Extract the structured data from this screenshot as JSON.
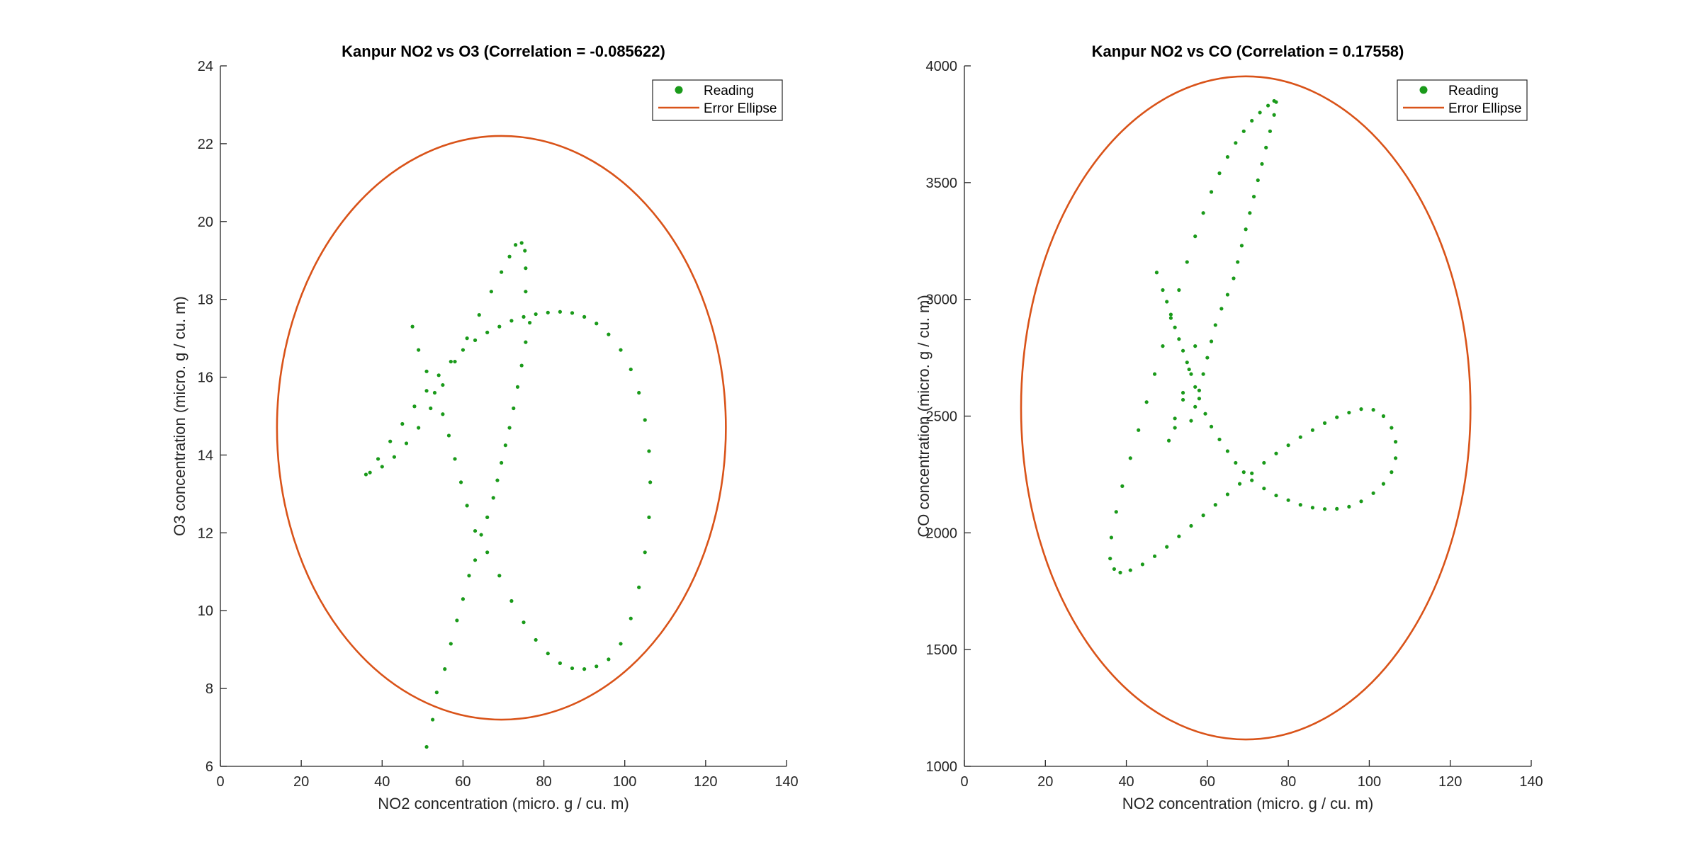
{
  "chart_data": [
    {
      "type": "scatter",
      "title": "Kanpur NO2 vs O3 (Correlation = -0.085622)",
      "xlabel": "NO2 concentration (micro. g / cu. m)",
      "ylabel": "O3 concentration (micro. g / cu. m)",
      "xlim": [
        0,
        140
      ],
      "ylim": [
        6,
        24
      ],
      "xticks": [
        "0",
        "20",
        "40",
        "60",
        "80",
        "100",
        "120",
        "140"
      ],
      "yticks": [
        "6",
        "8",
        "10",
        "12",
        "14",
        "16",
        "18",
        "20",
        "22",
        "24"
      ],
      "grid": false,
      "legend_position": "top-right",
      "series": [
        {
          "name": "Reading",
          "kind": "points",
          "color": "#1a9a1a",
          "points": [
            [
              51,
              6.5
            ],
            [
              52.5,
              7.2
            ],
            [
              53.5,
              7.9
            ],
            [
              55.5,
              8.5
            ],
            [
              57,
              9.15
            ],
            [
              58.5,
              9.75
            ],
            [
              60,
              10.3
            ],
            [
              61.5,
              10.9
            ],
            [
              63,
              11.3
            ],
            [
              64.5,
              11.95
            ],
            [
              66,
              12.4
            ],
            [
              67.5,
              12.9
            ],
            [
              68.5,
              13.35
            ],
            [
              69.5,
              13.8
            ],
            [
              70.5,
              14.25
            ],
            [
              71.5,
              14.7
            ],
            [
              72.5,
              15.2
            ],
            [
              73.5,
              15.75
            ],
            [
              74.5,
              16.3
            ],
            [
              75.5,
              16.9
            ],
            [
              76.5,
              17.4
            ],
            [
              75.5,
              18.2
            ],
            [
              75.5,
              18.8
            ],
            [
              75.3,
              19.25
            ],
            [
              74.5,
              19.45
            ],
            [
              73,
              19.4
            ],
            [
              71.5,
              19.1
            ],
            [
              69.5,
              18.7
            ],
            [
              67,
              18.2
            ],
            [
              64,
              17.6
            ],
            [
              61,
              17.0
            ],
            [
              58,
              16.4
            ],
            [
              55,
              15.8
            ],
            [
              52,
              15.2
            ],
            [
              49,
              14.7
            ],
            [
              46,
              14.3
            ],
            [
              43,
              13.95
            ],
            [
              40,
              13.7
            ],
            [
              37,
              13.55
            ],
            [
              36,
              13.5
            ],
            [
              39,
              13.9
            ],
            [
              42,
              14.35
            ],
            [
              45,
              14.8
            ],
            [
              48,
              15.25
            ],
            [
              51,
              15.65
            ],
            [
              54,
              16.05
            ],
            [
              57,
              16.4
            ],
            [
              60,
              16.7
            ],
            [
              63,
              16.95
            ],
            [
              66,
              17.15
            ],
            [
              69,
              17.3
            ],
            [
              72,
              17.45
            ],
            [
              75,
              17.55
            ],
            [
              78,
              17.62
            ],
            [
              81,
              17.66
            ],
            [
              84,
              17.68
            ],
            [
              87,
              17.65
            ],
            [
              90,
              17.55
            ],
            [
              93,
              17.38
            ],
            [
              96,
              17.1
            ],
            [
              99,
              16.7
            ],
            [
              101.5,
              16.2
            ],
            [
              103.5,
              15.6
            ],
            [
              105,
              14.9
            ],
            [
              106,
              14.1
            ],
            [
              106.3,
              13.3
            ],
            [
              106,
              12.4
            ],
            [
              105,
              11.5
            ],
            [
              103.5,
              10.6
            ],
            [
              101.5,
              9.8
            ],
            [
              99,
              9.15
            ],
            [
              96,
              8.75
            ],
            [
              93,
              8.57
            ],
            [
              90,
              8.5
            ],
            [
              87,
              8.52
            ],
            [
              84,
              8.65
            ],
            [
              81,
              8.9
            ],
            [
              78,
              9.25
            ],
            [
              75,
              9.7
            ],
            [
              72,
              10.25
            ],
            [
              69,
              10.9
            ],
            [
              66,
              11.5
            ],
            [
              63,
              12.05
            ],
            [
              61,
              12.7
            ],
            [
              59.5,
              13.3
            ],
            [
              58,
              13.9
            ],
            [
              56.5,
              14.5
            ],
            [
              55,
              15.05
            ],
            [
              53,
              15.6
            ],
            [
              51,
              16.15
            ],
            [
              49,
              16.7
            ],
            [
              47.5,
              17.3
            ]
          ]
        },
        {
          "name": "Error Ellipse",
          "kind": "ellipse",
          "color": "#d95319",
          "center": [
            69.5,
            14.7
          ],
          "x_halfwidth": 55.5,
          "y_halfheight": 7.5,
          "x_extent": [
            14,
            125
          ],
          "y_extent": [
            7.25,
            22.2
          ]
        }
      ]
    },
    {
      "type": "scatter",
      "title": "Kanpur NO2 vs CO (Correlation = 0.17558)",
      "xlabel": "NO2 concentration (micro. g / cu. m)",
      "ylabel": "CO concentration (micro. g / cu. m)",
      "xlim": [
        0,
        140
      ],
      "ylim": [
        1000,
        4000
      ],
      "xticks": [
        "0",
        "20",
        "40",
        "60",
        "80",
        "100",
        "120",
        "140"
      ],
      "yticks": [
        "1000",
        "1500",
        "2000",
        "2500",
        "3000",
        "3500",
        "4000"
      ],
      "grid": false,
      "legend_position": "top-right",
      "series": [
        {
          "name": "Reading",
          "kind": "points",
          "color": "#1a9a1a",
          "points": [
            [
              47.5,
              3115
            ],
            [
              49,
              3040
            ],
            [
              50,
              2990
            ],
            [
              51,
              2935
            ],
            [
              52,
              2880
            ],
            [
              53,
              2830
            ],
            [
              54,
              2780
            ],
            [
              55,
              2730
            ],
            [
              56,
              2680
            ],
            [
              57,
              2625
            ],
            [
              58,
              2575
            ],
            [
              59.5,
              2510
            ],
            [
              61,
              2455
            ],
            [
              63,
              2400
            ],
            [
              65,
              2350
            ],
            [
              67,
              2300
            ],
            [
              69,
              2260
            ],
            [
              71,
              2225
            ],
            [
              74,
              2190
            ],
            [
              77,
              2160
            ],
            [
              80,
              2140
            ],
            [
              83,
              2120
            ],
            [
              86,
              2108
            ],
            [
              89,
              2102
            ],
            [
              92,
              2103
            ],
            [
              95,
              2112
            ],
            [
              98,
              2135
            ],
            [
              101,
              2170
            ],
            [
              103.5,
              2210
            ],
            [
              105.5,
              2260
            ],
            [
              106.5,
              2320
            ],
            [
              106.5,
              2390
            ],
            [
              105.5,
              2450
            ],
            [
              103.5,
              2500
            ],
            [
              101,
              2527
            ],
            [
              98,
              2530
            ],
            [
              95,
              2515
            ],
            [
              92,
              2495
            ],
            [
              89,
              2470
            ],
            [
              86,
              2440
            ],
            [
              83,
              2410
            ],
            [
              80,
              2375
            ],
            [
              77,
              2340
            ],
            [
              74,
              2300
            ],
            [
              71,
              2255
            ],
            [
              68,
              2210
            ],
            [
              65,
              2165
            ],
            [
              62,
              2120
            ],
            [
              59,
              2075
            ],
            [
              56,
              2030
            ],
            [
              53,
              1985
            ],
            [
              50,
              1940
            ],
            [
              47,
              1900
            ],
            [
              44,
              1865
            ],
            [
              41,
              1840
            ],
            [
              38.5,
              1830
            ],
            [
              37,
              1845
            ],
            [
              36,
              1890
            ],
            [
              36.3,
              1980
            ],
            [
              37.5,
              2090
            ],
            [
              39,
              2200
            ],
            [
              41,
              2320
            ],
            [
              43,
              2440
            ],
            [
              45,
              2560
            ],
            [
              47,
              2680
            ],
            [
              49,
              2800
            ],
            [
              51,
              2920
            ],
            [
              53,
              3040
            ],
            [
              55,
              3160
            ],
            [
              57,
              3270
            ],
            [
              59,
              3370
            ],
            [
              61,
              3460
            ],
            [
              63,
              3540
            ],
            [
              65,
              3610
            ],
            [
              67,
              3670
            ],
            [
              69,
              3720
            ],
            [
              71,
              3765
            ],
            [
              73,
              3800
            ],
            [
              75,
              3830
            ],
            [
              76.5,
              3850
            ],
            [
              77,
              3845
            ],
            [
              76.5,
              3790
            ],
            [
              75.5,
              3720
            ],
            [
              74.5,
              3650
            ],
            [
              73.5,
              3580
            ],
            [
              72.5,
              3510
            ],
            [
              71.5,
              3440
            ],
            [
              70.5,
              3370
            ],
            [
              69.5,
              3300
            ],
            [
              68.5,
              3230
            ],
            [
              67.5,
              3160
            ],
            [
              66.5,
              3090
            ],
            [
              65,
              3020
            ],
            [
              63.5,
              2960
            ],
            [
              62,
              2890
            ],
            [
              61,
              2820
            ],
            [
              60,
              2750
            ],
            [
              59,
              2680
            ],
            [
              58,
              2610
            ],
            [
              57,
              2540
            ],
            [
              56,
              2480
            ],
            [
              54,
              2570
            ],
            [
              52,
              2490
            ],
            [
              50.5,
              2395
            ],
            [
              52,
              2450
            ],
            [
              54,
              2600
            ],
            [
              55.5,
              2700
            ],
            [
              57,
              2800
            ]
          ]
        },
        {
          "name": "Error Ellipse",
          "kind": "ellipse",
          "color": "#d95319",
          "center": [
            69.5,
            2535
          ],
          "x_halfwidth": 55.5,
          "y_halfheight": 1420,
          "x_extent": [
            14,
            125
          ],
          "y_extent": [
            1110,
            3960
          ]
        }
      ]
    }
  ]
}
